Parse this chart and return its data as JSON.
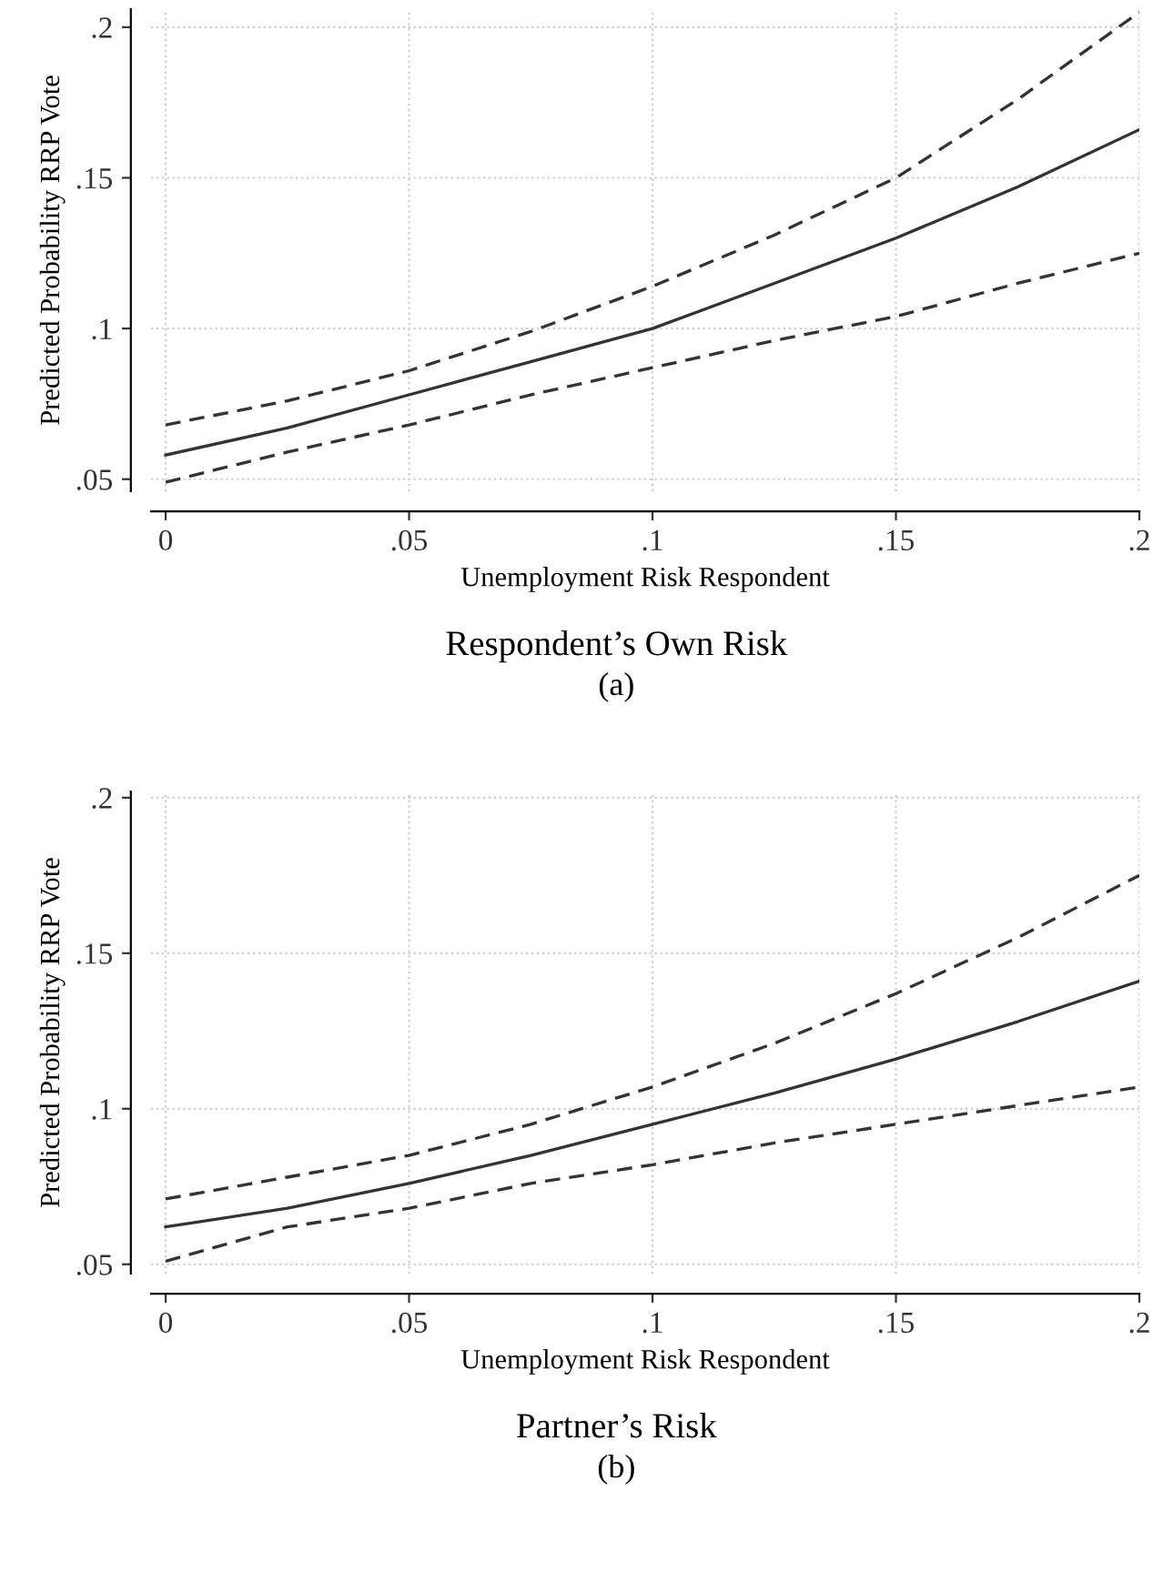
{
  "chart_data": [
    {
      "type": "line",
      "title": "Respondent’s Own Risk",
      "annotations": [
        "(a)"
      ],
      "xlabel": "Unemployment Risk Respondent",
      "ylabel": "Predicted Probability RRP Vote",
      "x": [
        0,
        0.025,
        0.05,
        0.075,
        0.1,
        0.125,
        0.15,
        0.175,
        0.2
      ],
      "series": [
        {
          "color": "#333333",
          "line_style": "solid",
          "values": [
            0.058,
            0.067,
            0.078,
            0.089,
            0.1,
            0.115,
            0.13,
            0.147,
            0.166
          ]
        },
        {
          "color": "#333333",
          "line_style": "dashed",
          "values": [
            0.049,
            0.059,
            0.068,
            0.078,
            0.087,
            0.096,
            0.104,
            0.115,
            0.125
          ]
        },
        {
          "color": "#333333",
          "line_style": "dashed",
          "values": [
            0.068,
            0.076,
            0.086,
            0.099,
            0.114,
            0.131,
            0.15,
            0.176,
            0.205
          ]
        }
      ],
      "xlim": [
        -0.003,
        0.2
      ],
      "ylim": [
        0.046,
        0.206
      ],
      "xticks": [
        {
          "value": 0,
          "label": "0"
        },
        {
          "value": 0.05,
          "label": ".05"
        },
        {
          "value": 0.1,
          "label": ".1"
        },
        {
          "value": 0.15,
          "label": ".15"
        },
        {
          "value": 0.2,
          "label": ".2"
        }
      ],
      "yticks": [
        {
          "value": 0.05,
          "label": ".05"
        },
        {
          "value": 0.1,
          "label": ".1"
        },
        {
          "value": 0.15,
          "label": ".15"
        },
        {
          "value": 0.2,
          "label": ".2"
        }
      ],
      "grid": true
    },
    {
      "type": "line",
      "title": "Partner’s Risk",
      "annotations": [
        "(b)"
      ],
      "xlabel": "Unemployment Risk Respondent",
      "ylabel": "Predicted Probability RRP Vote",
      "x": [
        0,
        0.025,
        0.05,
        0.075,
        0.1,
        0.125,
        0.15,
        0.175,
        0.2
      ],
      "series": [
        {
          "color": "#333333",
          "line_style": "solid",
          "values": [
            0.062,
            0.068,
            0.076,
            0.085,
            0.095,
            0.105,
            0.116,
            0.128,
            0.141
          ]
        },
        {
          "color": "#333333",
          "line_style": "dashed",
          "values": [
            0.051,
            0.062,
            0.068,
            0.076,
            0.082,
            0.089,
            0.095,
            0.101,
            0.107
          ]
        },
        {
          "color": "#333333",
          "line_style": "dashed",
          "values": [
            0.071,
            0.078,
            0.085,
            0.095,
            0.107,
            0.121,
            0.137,
            0.155,
            0.175
          ]
        }
      ],
      "xlim": [
        -0.003,
        0.2
      ],
      "ylim": [
        0.047,
        0.202
      ],
      "xticks": [
        {
          "value": 0,
          "label": "0"
        },
        {
          "value": 0.05,
          "label": ".05"
        },
        {
          "value": 0.1,
          "label": ".1"
        },
        {
          "value": 0.15,
          "label": ".15"
        },
        {
          "value": 0.2,
          "label": ".2"
        }
      ],
      "yticks": [
        {
          "value": 0.05,
          "label": ".05"
        },
        {
          "value": 0.1,
          "label": ".1"
        },
        {
          "value": 0.15,
          "label": ".15"
        },
        {
          "value": 0.2,
          "label": ".2"
        }
      ],
      "grid": true
    }
  ]
}
